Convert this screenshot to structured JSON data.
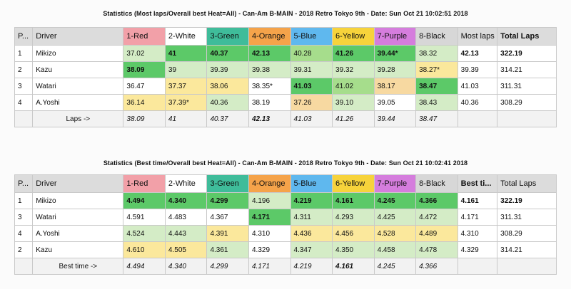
{
  "table1": {
    "title": "Statistics (Most laps/Overall best Heat=All) - Can-Am B-MAIN - 2018 Retro Tokyo 9th - Date: Sun Oct 21 10:02:51 2018",
    "headers": [
      "P...",
      "Driver",
      "1-Red",
      "2-White",
      "3-Green",
      "4-Orange",
      "5-Blue",
      "6-Yellow",
      "7-Purple",
      "8-Black",
      "Most laps",
      "Total Laps"
    ],
    "rows": [
      [
        "1",
        "Mikizo",
        "37.02",
        "41",
        "40.37",
        "42.13",
        "40.28",
        "41.26",
        "39.44*",
        "38.32",
        "42.13",
        "322.19"
      ],
      [
        "2",
        "Kazu",
        "38.09",
        "39",
        "39.39",
        "39.38",
        "39.31",
        "39.32",
        "39.28",
        "38.27*",
        "39.39",
        "314.21"
      ],
      [
        "3",
        "Watari",
        "36.47",
        "37.37",
        "38.06",
        "38.35*",
        "41.03",
        "41.02",
        "38.17",
        "38.47",
        "41.03",
        "311.31"
      ],
      [
        "4",
        "A.Yoshi",
        "36.14",
        "37.39*",
        "40.36",
        "38.19",
        "37.26",
        "39.10",
        "39.05",
        "38.43",
        "40.36",
        "308.29"
      ]
    ],
    "footer": [
      "",
      "Laps ->",
      "38.09",
      "41",
      "40.37",
      "42.13",
      "41.03",
      "41.26",
      "39.44",
      "38.47",
      "",
      ""
    ]
  },
  "table2": {
    "title": "Statistics (Best time/Overall best Heat=All) - Can-Am B-MAIN - 2018 Retro Tokyo 9th - Date: Sun Oct 21 10:02:41 2018",
    "headers": [
      "P...",
      "Driver",
      "1-Red",
      "2-White",
      "3-Green",
      "4-Orange",
      "5-Blue",
      "6-Yellow",
      "7-Purple",
      "8-Black",
      "Best ti...",
      "Total Laps"
    ],
    "rows": [
      [
        "1",
        "Mikizo",
        "4.494",
        "4.340",
        "4.299",
        "4.196",
        "4.219",
        "4.161",
        "4.245",
        "4.366",
        "4.161",
        "322.19"
      ],
      [
        "3",
        "Watari",
        "4.591",
        "4.483",
        "4.367",
        "4.171",
        "4.311",
        "4.293",
        "4.425",
        "4.472",
        "4.171",
        "311.31"
      ],
      [
        "4",
        "A.Yoshi",
        "4.524",
        "4.443",
        "4.391",
        "4.310",
        "4.436",
        "4.456",
        "4.528",
        "4.489",
        "4.310",
        "308.29"
      ],
      [
        "2",
        "Kazu",
        "4.610",
        "4.505",
        "4.361",
        "4.329",
        "4.347",
        "4.350",
        "4.458",
        "4.478",
        "4.329",
        "314.21"
      ]
    ],
    "footer": [
      "",
      "Best time ->",
      "4.494",
      "4.340",
      "4.299",
      "4.171",
      "4.219",
      "4.161",
      "4.245",
      "4.366",
      "",
      ""
    ]
  },
  "colors": {
    "red": "#f2a0a8",
    "white": "#ffffff",
    "green": "#3fbc9a",
    "orange": "#f5a34a",
    "blue": "#5fb8ee",
    "yellow": "#f7d33b",
    "purple": "#d57ddd",
    "black": "#d7d7d7",
    "best": "#5cc968",
    "good": "#a6dd8c",
    "fair": "#d4ecc6",
    "mid": "#fbe89c",
    "slow": "#f7d9a1"
  }
}
